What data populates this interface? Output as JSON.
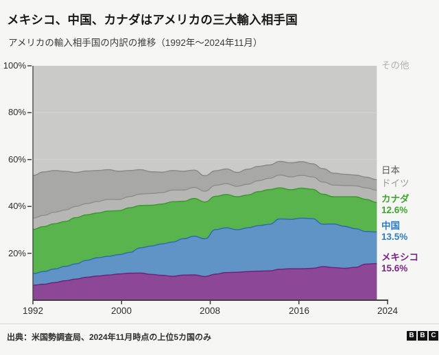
{
  "header": {
    "title": "メキシコ、中国、カナダはアメリカの三大輸入相手国",
    "subtitle": "アメリカの輸入相手国の内訳の推移（1992年～2024年11月）"
  },
  "footer": {
    "source": "出典：米国勢調査局、2024年11月時点の上位5カ国のみ",
    "logo_letters": [
      "B",
      "B",
      "C"
    ]
  },
  "colors": {
    "page_background": "#f6f6f4",
    "axis": "#3f3f3d",
    "gridline": "#d6d6d4",
    "tick_text": "#2d2d2b"
  },
  "chart_data": {
    "type": "area",
    "stacked": true,
    "title": "アメリカの輸入相手国の内訳の推移（1992年～2024年11月）",
    "xlabel": "",
    "ylabel": "",
    "ylim": [
      0,
      100
    ],
    "grid": true,
    "legend_position": "right",
    "x": [
      1992,
      1993,
      1994,
      1995,
      1996,
      1997,
      1998,
      1999,
      2000,
      2001,
      2002,
      2003,
      2004,
      2005,
      2006,
      2007,
      2008,
      2009,
      2010,
      2011,
      2012,
      2013,
      2014,
      2015,
      2016,
      2017,
      2018,
      2019,
      2020,
      2021,
      2022,
      2023,
      2024
    ],
    "xticks": {
      "values": [
        1992,
        2000,
        2008,
        2016,
        2024
      ],
      "labels": [
        "1992",
        "2000",
        "2008",
        "2016",
        "2024"
      ]
    },
    "yticks": {
      "values": [
        20,
        40,
        60,
        80,
        100
      ],
      "labels": [
        "20%",
        "40%",
        "60%",
        "80%",
        "100%"
      ]
    },
    "series": [
      {
        "name": "メキシコ",
        "current": "15.6%",
        "color": "#8c4896",
        "line_color": "#6f2276",
        "label_color": "#7b2383",
        "values": [
          6.4,
          6.8,
          7.5,
          8.3,
          9.0,
          9.8,
          10.3,
          10.7,
          11.2,
          11.5,
          11.6,
          11.0,
          10.6,
          10.2,
          10.7,
          10.8,
          10.1,
          11.1,
          11.8,
          11.9,
          12.2,
          12.4,
          12.5,
          13.2,
          13.4,
          13.4,
          13.6,
          14.3,
          13.9,
          13.6,
          14.0,
          15.4,
          15.6
        ]
      },
      {
        "name": "中国",
        "current": "13.5%",
        "color": "#6094c7",
        "line_color": "#2e6cb0",
        "label_color": "#2b7cc4",
        "values": [
          4.9,
          5.4,
          5.8,
          6.1,
          6.5,
          7.2,
          7.8,
          8.0,
          8.2,
          8.9,
          10.7,
          12.1,
          13.4,
          14.6,
          15.5,
          16.5,
          16.1,
          19.0,
          19.1,
          18.1,
          18.7,
          19.4,
          19.9,
          21.5,
          21.1,
          21.6,
          21.2,
          18.1,
          18.6,
          17.9,
          16.5,
          13.9,
          13.5
        ]
      },
      {
        "name": "カナダ",
        "current": "12.6%",
        "color": "#5ab44e",
        "line_color": "#3a9a2b",
        "label_color": "#3ea52c",
        "values": [
          18.9,
          19.2,
          19.3,
          19.2,
          19.7,
          19.4,
          19.1,
          19.3,
          18.8,
          19.0,
          18.1,
          17.4,
          17.0,
          17.2,
          16.0,
          16.1,
          15.7,
          14.2,
          14.2,
          14.1,
          14.0,
          14.5,
          14.8,
          13.2,
          12.6,
          12.8,
          12.5,
          12.8,
          11.6,
          12.6,
          13.6,
          13.7,
          12.6
        ]
      },
      {
        "name": "ドイツ",
        "color": "#b6b6b4",
        "line_color": "#8f8f8d",
        "label_color": "#9b9b99",
        "values": [
          4.8,
          4.8,
          4.9,
          4.9,
          4.8,
          4.8,
          4.9,
          5.0,
          4.8,
          4.8,
          4.9,
          5.0,
          4.9,
          5.0,
          4.8,
          4.7,
          4.6,
          4.7,
          4.6,
          4.5,
          4.6,
          4.7,
          4.8,
          5.5,
          5.5,
          5.5,
          5.3,
          5.2,
          5.0,
          4.8,
          4.7,
          4.9,
          5.2
        ]
      },
      {
        "name": "日本",
        "color": "#a8a8a6",
        "line_color": "#8a8a88",
        "label_color": "#5a5a58",
        "values": [
          18.2,
          18.5,
          17.8,
          16.5,
          14.5,
          13.9,
          13.2,
          12.7,
          12.0,
          11.1,
          10.4,
          9.3,
          8.7,
          8.3,
          8.0,
          7.4,
          6.6,
          6.2,
          6.3,
          5.9,
          6.4,
          6.1,
          5.7,
          5.8,
          6.0,
          5.8,
          5.6,
          5.7,
          5.1,
          4.8,
          4.6,
          4.6,
          4.5
        ]
      },
      {
        "name": "その他",
        "color": "#cacac8",
        "label_color": "#b1b1af",
        "remainder_to": 100
      }
    ]
  }
}
